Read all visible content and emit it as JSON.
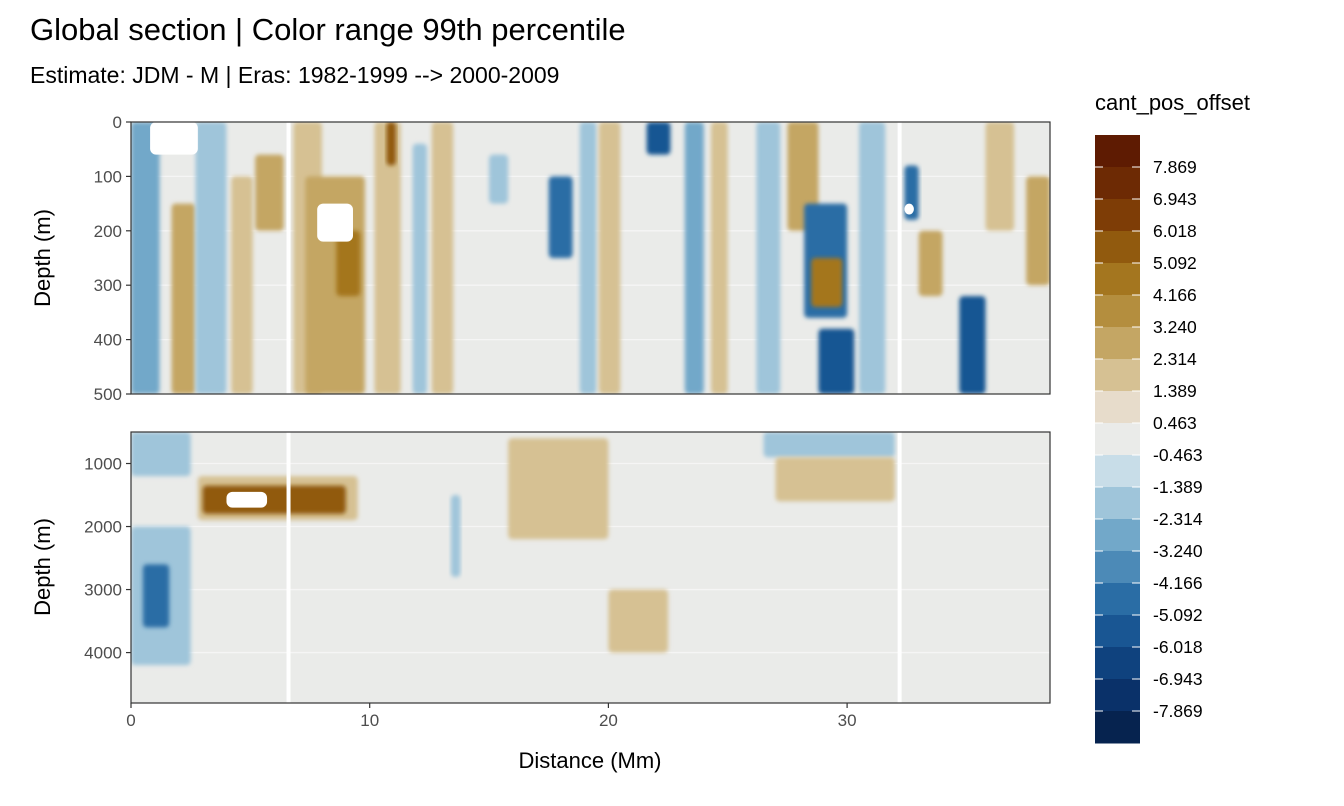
{
  "chart_data": {
    "type": "heatmap",
    "title": "Global section | Color range 99th percentile",
    "subtitle": "Estimate: JDM - M | Eras: 1982-1999 --> 2000-2009",
    "xlabel": "Distance (Mm)",
    "ylabel": "Depth (m)",
    "xlim": [
      0,
      38.5
    ],
    "x_ticks": [
      "0",
      "10",
      "20",
      "30"
    ],
    "grid": true,
    "panels": [
      {
        "name": "upper",
        "ylim": [
          0,
          500
        ],
        "y_reversed": true,
        "y_ticks": [
          "0",
          "100",
          "200",
          "300",
          "400",
          "500"
        ],
        "no_data_columns_x": [
          6.6,
          32.2
        ],
        "white_patches": [
          {
            "x": [
              0.8,
              2.8
            ],
            "y": [
              0,
              60
            ]
          },
          {
            "x": [
              7.8,
              9.3
            ],
            "y": [
              150,
              220
            ]
          },
          {
            "x": [
              32.4,
              32.8
            ],
            "y": [
              150,
              170
            ]
          }
        ],
        "features": [
          {
            "x": [
              0,
              1.2
            ],
            "y": [
              0,
              500
            ],
            "value": -3.2
          },
          {
            "x": [
              1.7,
              2.7
            ],
            "y": [
              150,
              500
            ],
            "value": 3.2
          },
          {
            "x": [
              2.7,
              4.0
            ],
            "y": [
              0,
              500
            ],
            "value": -1.4
          },
          {
            "x": [
              4.2,
              5.1
            ],
            "y": [
              100,
              500
            ],
            "value": 2.3
          },
          {
            "x": [
              5.2,
              6.4
            ],
            "y": [
              60,
              200
            ],
            "value": 3.2
          },
          {
            "x": [
              6.8,
              8.0
            ],
            "y": [
              0,
              500
            ],
            "value": 1.4
          },
          {
            "x": [
              7.3,
              9.8
            ],
            "y": [
              100,
              500
            ],
            "value": 3.2
          },
          {
            "x": [
              8.6,
              9.6
            ],
            "y": [
              200,
              320
            ],
            "value": 4.2
          },
          {
            "x": [
              10.2,
              11.3
            ],
            "y": [
              0,
              500
            ],
            "value": 2.3
          },
          {
            "x": [
              10.7,
              11.1
            ],
            "y": [
              0,
              80
            ],
            "value": 6.0
          },
          {
            "x": [
              11.8,
              12.4
            ],
            "y": [
              40,
              500
            ],
            "value": -2.3
          },
          {
            "x": [
              12.6,
              13.5
            ],
            "y": [
              0,
              500
            ],
            "value": 1.4
          },
          {
            "x": [
              15.0,
              15.8
            ],
            "y": [
              60,
              150
            ],
            "value": -1.4
          },
          {
            "x": [
              17.5,
              18.5
            ],
            "y": [
              100,
              250
            ],
            "value": -4.2
          },
          {
            "x": [
              18.8,
              19.5
            ],
            "y": [
              0,
              500
            ],
            "value": -2.3
          },
          {
            "x": [
              19.6,
              20.5
            ],
            "y": [
              0,
              500
            ],
            "value": 1.4
          },
          {
            "x": [
              21.6,
              22.6
            ],
            "y": [
              0,
              60
            ],
            "value": -5.1
          },
          {
            "x": [
              23.2,
              24.0
            ],
            "y": [
              0,
              500
            ],
            "value": -3.2
          },
          {
            "x": [
              24.3,
              25.0
            ],
            "y": [
              0,
              500
            ],
            "value": 1.4
          },
          {
            "x": [
              26.2,
              27.2
            ],
            "y": [
              0,
              500
            ],
            "value": -2.3
          },
          {
            "x": [
              27.5,
              28.8
            ],
            "y": [
              0,
              200
            ],
            "value": 3.2
          },
          {
            "x": [
              28.2,
              30.0
            ],
            "y": [
              150,
              360
            ],
            "value": -4.2
          },
          {
            "x": [
              28.5,
              29.8
            ],
            "y": [
              250,
              340
            ],
            "value": 4.2
          },
          {
            "x": [
              28.8,
              30.3
            ],
            "y": [
              380,
              500
            ],
            "value": -5.1
          },
          {
            "x": [
              30.5,
              31.6
            ],
            "y": [
              0,
              500
            ],
            "value": -1.4
          },
          {
            "x": [
              32.4,
              33.0
            ],
            "y": [
              80,
              180
            ],
            "value": -4.2
          },
          {
            "x": [
              33.0,
              34.0
            ],
            "y": [
              200,
              320
            ],
            "value": 3.2
          },
          {
            "x": [
              34.7,
              35.8
            ],
            "y": [
              320,
              500
            ],
            "value": -5.1
          },
          {
            "x": [
              35.8,
              37.0
            ],
            "y": [
              0,
              200
            ],
            "value": 1.4
          },
          {
            "x": [
              37.5,
              38.5
            ],
            "y": [
              100,
              300
            ],
            "value": 3.2
          }
        ]
      },
      {
        "name": "lower",
        "ylim": [
          500,
          4800
        ],
        "y_reversed": true,
        "y_ticks": [
          "1000",
          "2000",
          "3000",
          "4000"
        ],
        "no_data_columns_x": [
          6.6,
          32.2
        ],
        "white_patches": [
          {
            "x": [
              4.0,
              5.7
            ],
            "y": [
              1450,
              1700
            ]
          }
        ],
        "features": [
          {
            "x": [
              0,
              2.5
            ],
            "y": [
              500,
              1200
            ],
            "value": -1.4
          },
          {
            "x": [
              0,
              2.5
            ],
            "y": [
              2000,
              4200
            ],
            "value": -1.4
          },
          {
            "x": [
              0.5,
              1.6
            ],
            "y": [
              2600,
              3600
            ],
            "value": -4.2
          },
          {
            "x": [
              2.8,
              9.5
            ],
            "y": [
              1200,
              1900
            ],
            "value": 1.4
          },
          {
            "x": [
              3.0,
              9.0
            ],
            "y": [
              1350,
              1800
            ],
            "value": 5.1
          },
          {
            "x": [
              15.8,
              20.0
            ],
            "y": [
              600,
              2200
            ],
            "value": 1.4
          },
          {
            "x": [
              20.0,
              22.5
            ],
            "y": [
              3000,
              4000
            ],
            "value": 1.4
          },
          {
            "x": [
              13.4,
              13.8
            ],
            "y": [
              1500,
              2800
            ],
            "value": -1.4
          },
          {
            "x": [
              26.5,
              32.0
            ],
            "y": [
              500,
              900
            ],
            "value": -1.4
          },
          {
            "x": [
              27.0,
              32.0
            ],
            "y": [
              900,
              1600
            ],
            "value": 1.4
          }
        ]
      }
    ],
    "colorbar": {
      "title": "cant_pos_offset",
      "labels": [
        "7.869",
        "6.943",
        "6.018",
        "5.092",
        "4.166",
        "3.240",
        "2.314",
        "1.389",
        "0.463",
        "-0.463",
        "-1.389",
        "-2.314",
        "-3.240",
        "-4.166",
        "-5.092",
        "-6.018",
        "-6.943",
        "-7.869"
      ],
      "colors": [
        "#5e1b02",
        "#6d2a04",
        "#7e3d06",
        "#915a0e",
        "#a4761f",
        "#b48e3e",
        "#c4a664",
        "#d6c193",
        "#e7dccb",
        "#eaebe9",
        "#c8dde8",
        "#9fc5da",
        "#72a8c9",
        "#4c8ab7",
        "#2a6da5",
        "#195693",
        "#0f427e",
        "#0a3169",
        "#06234f"
      ]
    }
  }
}
